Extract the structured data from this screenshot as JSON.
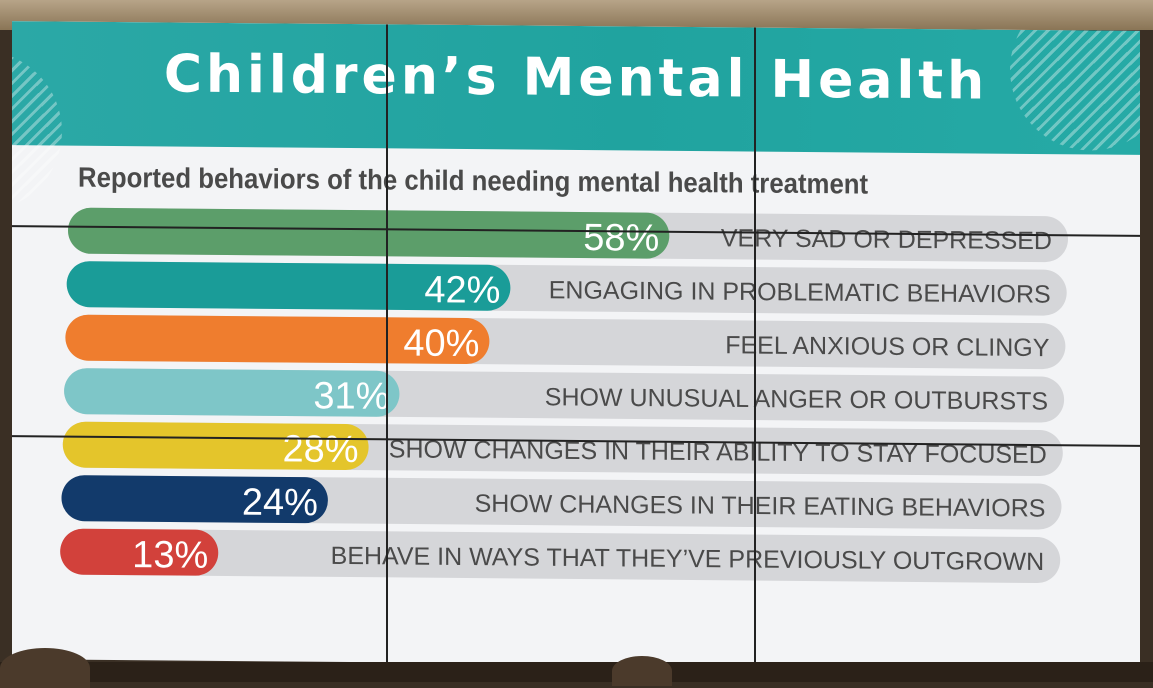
{
  "title": "Children’s Mental Health",
  "subtitle": "Reported behaviors of the child needing mental health treatment",
  "chart_data": {
    "type": "bar",
    "orientation": "horizontal",
    "categories": [
      "VERY SAD OR DEPRESSED",
      "ENGAGING IN PROBLEMATIC BEHAVIORS",
      "FEEL ANXIOUS OR CLINGY",
      "SHOW UNUSUAL ANGER OR OUTBURSTS",
      "SHOW CHANGES IN THEIR ABILITY TO STAY FOCUSED",
      "SHOW CHANGES IN THEIR EATING BEHAVIORS",
      "BEHAVE IN WAYS THAT THEY’VE PREVIOUSLY OUTGROWN"
    ],
    "values": [
      58,
      42,
      40,
      31,
      28,
      24,
      13
    ],
    "value_labels": [
      "58%",
      "42%",
      "40%",
      "31%",
      "28%",
      "24%",
      "13%"
    ],
    "colors": [
      "#5c9e6a",
      "#1a9c98",
      "#ef7d2e",
      "#7ec6c8",
      "#e4c52b",
      "#123a6b",
      "#d2413b"
    ],
    "track_color": "#d5d6d9",
    "xlim": [
      0,
      100
    ],
    "grid": false,
    "legend": "none"
  }
}
